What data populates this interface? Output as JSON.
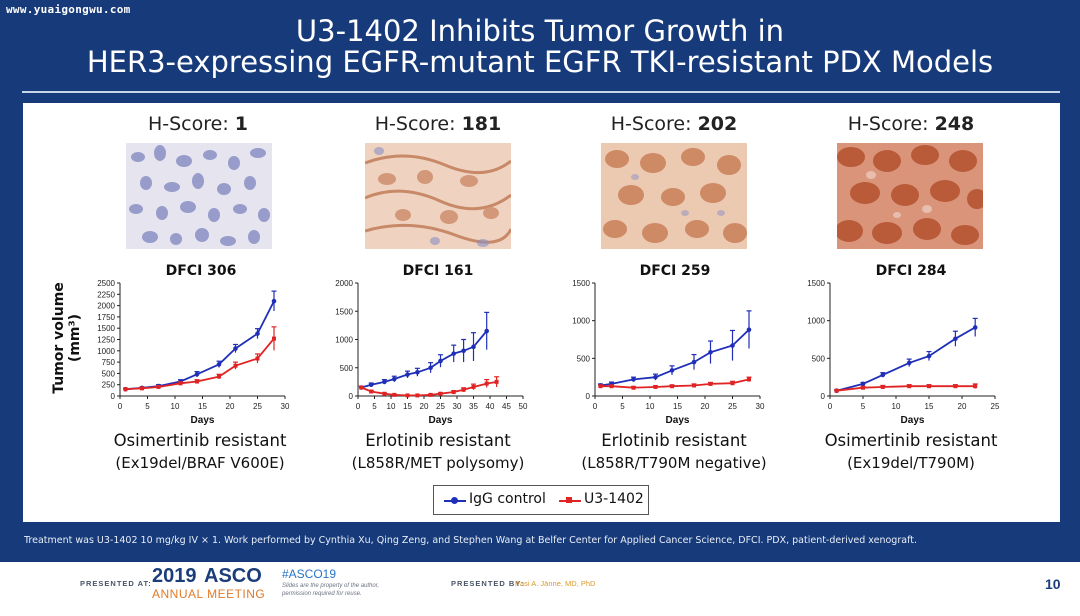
{
  "watermark": "www.yuaigongwu.com",
  "title": {
    "line1": "U3-1402 Inhibits Tumor Growth in",
    "line2": "HER3-expressing EGFR-mutant EGFR TKI-resistant PDX Models"
  },
  "panels": [
    {
      "hscore_label": "H-Score:",
      "hscore_value": "1",
      "model": "DFCI 306",
      "resistance": "Osimertinib resistant",
      "mutation": "(Ex19del/BRAF V600E)"
    },
    {
      "hscore_label": "H-Score:",
      "hscore_value": "181",
      "model": "DFCI 161",
      "resistance": "Erlotinib resistant",
      "mutation": "(L858R/MET polysomy)"
    },
    {
      "hscore_label": "H-Score:",
      "hscore_value": "202",
      "model": "DFCI 259",
      "resistance": "Erlotinib resistant",
      "mutation": "(L858R/T790M negative)"
    },
    {
      "hscore_label": "H-Score:",
      "hscore_value": "248",
      "model": "DFCI 284",
      "resistance": "Osimertinib resistant",
      "mutation": "(Ex19del/T790M)"
    }
  ],
  "y_axis_label_line1": "Tumor volume",
  "y_axis_label_line2": "(mm³)",
  "legend": {
    "igg": "IgG control",
    "u3": "U3-1402"
  },
  "colors": {
    "igg": "#1f2fb8",
    "u3": "#e02424",
    "slide_bg": "#173b7a"
  },
  "chart_data": [
    {
      "type": "line",
      "title": "DFCI 306",
      "xlabel": "Days",
      "ylabel": "Tumor volume (mm³)",
      "xlim": [
        0,
        30
      ],
      "ylim": [
        0,
        2500
      ],
      "xticks": [
        0,
        5,
        10,
        15,
        20,
        25,
        30
      ],
      "yticks": [
        0,
        250,
        500,
        750,
        1000,
        1250,
        1500,
        1750,
        2000,
        2250,
        2500
      ],
      "series": [
        {
          "name": "IgG control",
          "x": [
            1,
            4,
            7,
            11,
            14,
            18,
            21,
            25,
            28
          ],
          "y": [
            150,
            180,
            220,
            320,
            480,
            700,
            1050,
            1380,
            2100
          ],
          "err": [
            20,
            20,
            30,
            40,
            60,
            70,
            90,
            110,
            220
          ]
        },
        {
          "name": "U3-1402",
          "x": [
            1,
            4,
            7,
            11,
            14,
            18,
            21,
            25,
            28
          ],
          "y": [
            150,
            170,
            200,
            280,
            320,
            430,
            670,
            830,
            1270
          ],
          "err": [
            15,
            20,
            20,
            30,
            40,
            50,
            80,
            100,
            260
          ]
        }
      ]
    },
    {
      "type": "line",
      "title": "DFCI 161",
      "xlabel": "Days",
      "ylabel": "",
      "xlim": [
        0,
        50
      ],
      "ylim": [
        0,
        2000
      ],
      "xticks": [
        0,
        5,
        10,
        15,
        20,
        25,
        30,
        35,
        40,
        45,
        50
      ],
      "yticks": [
        0,
        500,
        1000,
        1500,
        2000
      ],
      "series": [
        {
          "name": "IgG control",
          "x": [
            1,
            4,
            8,
            11,
            15,
            18,
            22,
            25,
            29,
            32,
            35,
            39
          ],
          "y": [
            150,
            200,
            250,
            300,
            380,
            420,
            500,
            620,
            750,
            800,
            870,
            1150
          ],
          "err": [
            20,
            30,
            40,
            50,
            60,
            70,
            90,
            110,
            150,
            200,
            250,
            330
          ]
        },
        {
          "name": "U3-1402",
          "x": [
            1,
            4,
            8,
            11,
            15,
            18,
            22,
            25,
            29,
            32,
            35,
            39,
            42
          ],
          "y": [
            150,
            80,
            40,
            20,
            10,
            10,
            20,
            40,
            70,
            110,
            160,
            220,
            250
          ],
          "err": [
            20,
            20,
            15,
            10,
            5,
            5,
            10,
            15,
            25,
            35,
            50,
            70,
            90
          ]
        }
      ]
    },
    {
      "type": "line",
      "title": "DFCI 259",
      "xlabel": "Days",
      "ylabel": "",
      "xlim": [
        0,
        30
      ],
      "ylim": [
        0,
        1500
      ],
      "xticks": [
        0,
        5,
        10,
        15,
        20,
        25,
        30
      ],
      "yticks": [
        0,
        500,
        1000,
        1500
      ],
      "series": [
        {
          "name": "IgG control",
          "x": [
            1,
            3,
            7,
            11,
            14,
            18,
            21,
            25,
            28
          ],
          "y": [
            140,
            160,
            220,
            250,
            340,
            450,
            580,
            670,
            880
          ],
          "err": [
            20,
            25,
            30,
            40,
            60,
            100,
            150,
            200,
            250
          ]
        },
        {
          "name": "U3-1402",
          "x": [
            1,
            3,
            7,
            11,
            14,
            18,
            21,
            25,
            28
          ],
          "y": [
            130,
            130,
            110,
            120,
            130,
            140,
            160,
            170,
            220
          ],
          "err": [
            15,
            15,
            15,
            15,
            15,
            20,
            20,
            25,
            30
          ]
        }
      ]
    },
    {
      "type": "line",
      "title": "DFCI 284",
      "xlabel": "Days",
      "ylabel": "",
      "xlim": [
        0,
        25
      ],
      "ylim": [
        0,
        1500
      ],
      "xticks": [
        0,
        5,
        10,
        15,
        20,
        25
      ],
      "yticks": [
        0,
        500,
        1000,
        1500
      ],
      "series": [
        {
          "name": "IgG control",
          "x": [
            1,
            5,
            8,
            12,
            15,
            19,
            22
          ],
          "y": [
            70,
            160,
            280,
            440,
            530,
            760,
            910
          ],
          "err": [
            10,
            20,
            30,
            50,
            60,
            100,
            120
          ]
        },
        {
          "name": "U3-1402",
          "x": [
            1,
            5,
            8,
            12,
            15,
            19,
            22
          ],
          "y": [
            70,
            110,
            120,
            130,
            130,
            130,
            130
          ],
          "err": [
            10,
            15,
            20,
            20,
            20,
            20,
            30
          ]
        }
      ]
    }
  ],
  "footnote": "Treatment was U3-1402 10 mg/kg IV × 1. Work performed by Cynthia Xu, Qing Zeng, and Stephen Wang at Belfer Center for Applied Cancer Science, DFCI. PDX, patient-derived xenograft.",
  "bottom": {
    "presented_at": "PRESENTED AT:",
    "year": "2019",
    "brand": "ASCO",
    "annual": "ANNUAL MEETING",
    "hashtag": "#ASCO19",
    "note1": "Slides are the property of the author,",
    "note2": "permission required for reuse.",
    "presented_by": "PRESENTED BY:",
    "presenter": "Pasi A. Jänne, MD, PhD",
    "page": "10"
  }
}
